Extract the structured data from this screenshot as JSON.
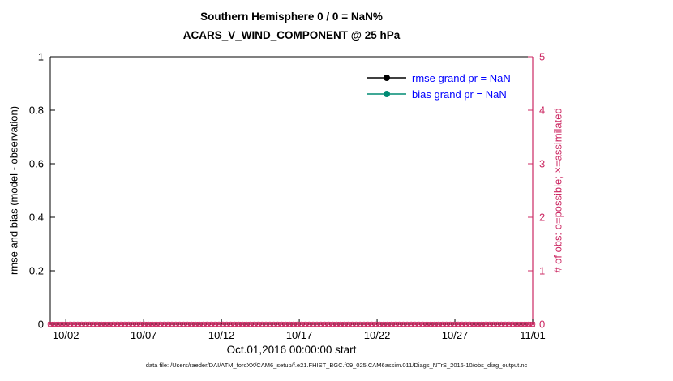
{
  "chart_data": {
    "type": "line",
    "title_line1": "Southern Hemisphere 0 / 0 = NaN%",
    "title_line2": "ACARS_V_WIND_COMPONENT @ 25 hPa",
    "xlabel": "Oct.01,2016 00:00:00 start",
    "caption": "data file: /Users/raeder/DAI/ATM_forcXX/CAM6_setup/f.e21.FHIST_BGC.f09_025.CAM6assim.011/Diags_NTrS_2016-10/obs_diag_output.nc",
    "x_axis": {
      "range_days": [
        0,
        31
      ],
      "ticks": [
        {
          "day": 1,
          "label": "10/02"
        },
        {
          "day": 6,
          "label": "10/07"
        },
        {
          "day": 11,
          "label": "10/12"
        },
        {
          "day": 16,
          "label": "10/17"
        },
        {
          "day": 21,
          "label": "10/22"
        },
        {
          "day": 26,
          "label": "10/27"
        },
        {
          "day": 31,
          "label": "11/01"
        }
      ]
    },
    "y_left": {
      "label": "rmse and bias (model - observation)",
      "lim": [
        0,
        1
      ],
      "color": "#000000",
      "ticks": [
        {
          "value": 0,
          "label": "0"
        },
        {
          "value": 0.2,
          "label": "0.2"
        },
        {
          "value": 0.4,
          "label": "0.4"
        },
        {
          "value": 0.6,
          "label": "0.6"
        },
        {
          "value": 0.8,
          "label": "0.8"
        },
        {
          "value": 1,
          "label": "1"
        }
      ]
    },
    "y_right": {
      "label": "# of obs: o=possible; ×=assimilated",
      "lim": [
        0,
        5
      ],
      "color": "#CC2963",
      "ticks": [
        {
          "value": 0,
          "label": "0"
        },
        {
          "value": 1,
          "label": "1"
        },
        {
          "value": 2,
          "label": "2"
        },
        {
          "value": 3,
          "label": "3"
        },
        {
          "value": 4,
          "label": "4"
        },
        {
          "value": 5,
          "label": "5"
        }
      ]
    },
    "legend": {
      "text_color": "#0000FF",
      "entries": [
        {
          "label": "rmse grand pr = NaN",
          "series": "rmse",
          "color": "#000000",
          "marker": "filled-circle"
        },
        {
          "label": "bias grand pr = NaN",
          "series": "bias",
          "color": "#008B74",
          "marker": "filled-circle"
        }
      ]
    },
    "series": [
      {
        "name": "rmse",
        "axis": "left",
        "grand_pr": "NaN",
        "color": "#000000",
        "points": []
      },
      {
        "name": "bias",
        "axis": "left",
        "grand_pr": "NaN",
        "color": "#008B74",
        "points": []
      },
      {
        "name": "obs_possible",
        "axis": "right",
        "marker": "o",
        "color": "#CC2963",
        "constant_value": 0,
        "n_points": 124,
        "day_start": 0,
        "day_end": 31
      },
      {
        "name": "obs_assimilated",
        "axis": "right",
        "marker": "x",
        "color": "#CC2963",
        "constant_value": 0,
        "n_points": 124,
        "day_start": 0,
        "day_end": 31
      }
    ]
  }
}
